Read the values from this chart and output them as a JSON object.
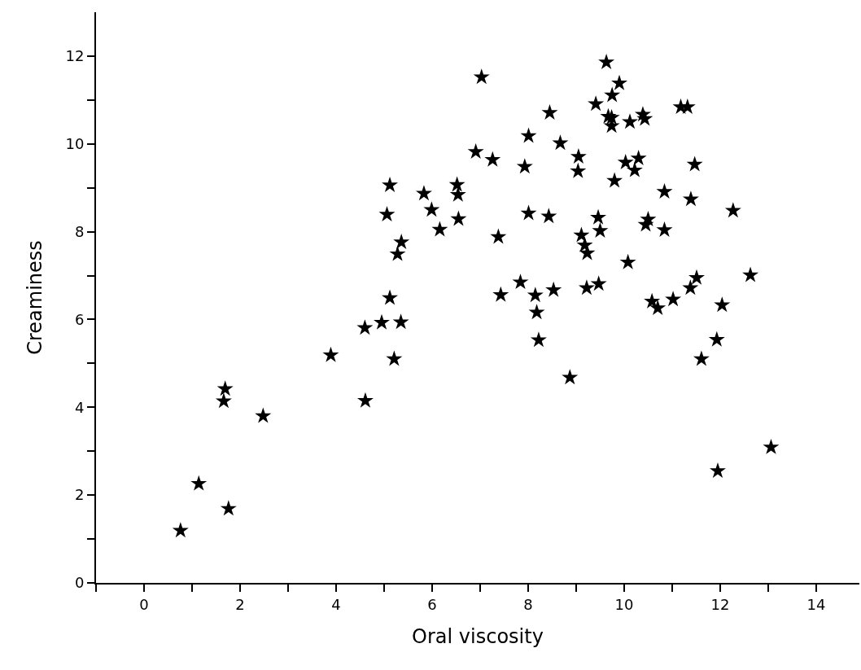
{
  "chart_data": {
    "type": "scatter",
    "xlabel": "Oral viscosity",
    "ylabel": "Creaminess",
    "marker": "star",
    "xlim": [
      -1,
      14.9
    ],
    "ylim": [
      0,
      13
    ],
    "xticks": [
      {
        "value": -1,
        "label": null
      },
      0,
      {
        "value": 1,
        "label": null
      },
      2,
      {
        "value": 3,
        "label": null
      },
      4,
      {
        "value": 5,
        "label": null
      },
      6,
      {
        "value": 7,
        "label": null
      },
      8,
      {
        "value": 9,
        "label": null
      },
      10,
      {
        "value": 11,
        "label": null
      },
      12,
      {
        "value": 13,
        "label": null
      },
      14
    ],
    "yticks": [
      0,
      {
        "value": 1,
        "label": null
      },
      2,
      {
        "value": 3,
        "label": null
      },
      4,
      {
        "value": 5,
        "label": null
      },
      6,
      {
        "value": 7,
        "label": null
      },
      8,
      {
        "value": 9,
        "label": null
      },
      10,
      {
        "value": 11,
        "label": null
      },
      12
    ],
    "series": [
      {
        "color": "#000000",
        "x": [
          0.76,
          1.14,
          1.76,
          1.69,
          1.66,
          2.48,
          3.89,
          4.61,
          4.6,
          4.95,
          5.35,
          5.12,
          5.21,
          5.12,
          5.06,
          5.83,
          5.99,
          6.16,
          5.36,
          5.28,
          9.63,
          7.03,
          9.9,
          9.75,
          9.41,
          8.45,
          9.67,
          9.74,
          9.74,
          10.12,
          10.39,
          10.43,
          8.01,
          8.67,
          6.91,
          7.26,
          7.93,
          9.05,
          9.04,
          10.03,
          10.3,
          10.22,
          9.8,
          6.52,
          6.54,
          6.55,
          7.38,
          8.01,
          8.43,
          9.46,
          9.5,
          9.11,
          9.18,
          9.23,
          10.08,
          10.45,
          10.5,
          11.18,
          11.32,
          11.47,
          10.84,
          11.39,
          12.27,
          10.84,
          7.84,
          7.43,
          8.15,
          8.53,
          9.22,
          9.47,
          8.18,
          8.22,
          8.87,
          10.58,
          10.7,
          11.02,
          11.38,
          11.51,
          12.63,
          12.04,
          11.93,
          11.61,
          13.06,
          11.95
        ],
        "values": [
          1.19,
          2.26,
          1.69,
          4.42,
          4.14,
          3.8,
          5.19,
          4.15,
          5.81,
          5.93,
          5.94,
          6.49,
          5.1,
          9.06,
          8.39,
          8.87,
          8.5,
          8.05,
          7.76,
          7.49,
          11.86,
          11.52,
          11.38,
          11.11,
          10.91,
          10.71,
          10.62,
          10.6,
          10.41,
          10.5,
          10.67,
          10.57,
          10.18,
          10.02,
          9.82,
          9.64,
          9.48,
          9.71,
          9.38,
          9.58,
          9.67,
          9.4,
          9.16,
          9.07,
          8.84,
          8.29,
          7.88,
          8.42,
          8.35,
          8.32,
          8.02,
          7.92,
          7.69,
          7.51,
          7.3,
          8.16,
          8.28,
          10.84,
          10.84,
          9.53,
          8.91,
          8.74,
          8.48,
          8.04,
          6.85,
          6.56,
          6.55,
          6.67,
          6.72,
          6.81,
          6.16,
          5.53,
          4.68,
          6.41,
          6.26,
          6.46,
          6.72,
          6.95,
          7.01,
          6.33,
          5.54,
          5.1,
          3.09,
          2.55
        ]
      }
    ]
  }
}
